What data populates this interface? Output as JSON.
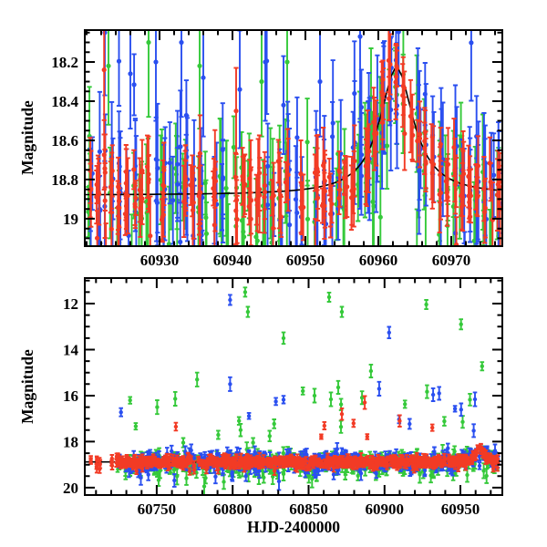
{
  "figure": {
    "ylabel_top": "Magnitude",
    "ylabel_bottom": "Magnitude",
    "xlabel_bottom": "HJD-2400000",
    "background": "#ffffff",
    "frame_color": "#000000"
  },
  "chart_data": [
    {
      "id": "top-panel",
      "type": "scatter",
      "title": "",
      "xlabel": "",
      "ylabel": "Magnitude",
      "y_inverted": true,
      "xlim": [
        60919.75,
        60977.0
      ],
      "ylim": [
        18.037,
        19.14
      ],
      "x_major_ticks": [
        60930,
        60940,
        60950,
        60960,
        60970
      ],
      "x_tick_labels": [
        "60930",
        "60940",
        "60950",
        "60960",
        "60970"
      ],
      "x_minor_step": 2,
      "y_major_ticks": [
        18.2,
        18.4,
        18.6,
        18.8,
        19.0
      ],
      "y_tick_labels": [
        "18.2",
        "18.4",
        "18.6",
        "18.8",
        "19"
      ],
      "y_minor_step": 0.05,
      "grid": false,
      "model_curve": {
        "color": "#000000",
        "baseline_mag": 18.88,
        "peak_mag": 18.23,
        "peak_time": 60962.5,
        "width_days": 2.8,
        "shape": "lorentzian"
      },
      "series": [
        {
          "name": "green",
          "color": "#35c93a",
          "band": {
            "t_start": 60920,
            "t_end": 60976,
            "skip": 0.22,
            "n_per_night": [
              2,
              4
            ],
            "base_offset": 0.06,
            "mag_sigma": 0.12,
            "err_range": [
              0.12,
              0.3
            ],
            "p_bright": 0.03,
            "bright_amp": 0.45,
            "p_faint": 0.08,
            "faint_amp": 0.3,
            "phase": -0.14,
            "seed": 11,
            "follows_model": true
          },
          "outliers": [
            [
              60923,
              18.22,
              0.3
            ],
            [
              60928.5,
              18.1,
              0.38
            ],
            [
              60935.5,
              18.22,
              0.32
            ],
            [
              60944,
              18.3,
              0.28
            ],
            [
              60947.5,
              18.2,
              0.3
            ],
            [
              60959,
              18.38,
              0.25
            ]
          ]
        },
        {
          "name": "blue",
          "color": "#2a4ff0",
          "band": {
            "t_start": 60920,
            "t_end": 60976,
            "skip": 0.2,
            "n_per_night": [
              2,
              5
            ],
            "base_offset": -0.02,
            "mag_sigma": 0.15,
            "err_range": [
              0.15,
              0.33
            ],
            "p_bright": 0.05,
            "bright_amp": 0.5,
            "p_faint": 0.08,
            "faint_amp": 0.3,
            "phase": 0.14,
            "seed": 22,
            "follows_model": true
          },
          "outliers": [
            [
              60922.5,
              18.05,
              0.32
            ],
            [
              60926,
              18.26,
              0.28
            ],
            [
              60929.5,
              18.2,
              0.3
            ],
            [
              60933,
              18.1,
              0.38
            ],
            [
              60936,
              18.28,
              0.3
            ],
            [
              60941,
              18.34,
              0.3
            ],
            [
              60944.5,
              18.2,
              0.3
            ],
            [
              60947,
              18.42,
              0.25
            ],
            [
              60952,
              18.3,
              0.28
            ],
            [
              60957.5,
              18.07,
              0.42
            ]
          ]
        },
        {
          "name": "red",
          "color": "#f23b25",
          "band": {
            "t_start": 60920,
            "t_end": 60976,
            "skip": 0.1,
            "n_per_night": [
              3,
              6
            ],
            "base_offset": 0.0,
            "mag_sigma": 0.085,
            "err_range": [
              0.08,
              0.2
            ],
            "p_bright": 0.004,
            "bright_amp": 0.3,
            "p_faint": 0.05,
            "faint_amp": 0.25,
            "phase": 0,
            "seed": 33,
            "follows_model": true
          },
          "outliers": [
            [
              60922.4,
              18.24,
              0.33
            ],
            [
              60940.5,
              18.45,
              0.22
            ]
          ]
        }
      ]
    },
    {
      "id": "bottom-panel",
      "type": "scatter",
      "title": "",
      "xlabel": "HJD-2400000",
      "ylabel": "Magnitude",
      "y_inverted": true,
      "xlim": [
        60702.6,
        60977.6
      ],
      "ylim": [
        10.89,
        20.32
      ],
      "x_major_ticks": [
        60750,
        60800,
        60850,
        60900,
        60950
      ],
      "x_tick_labels": [
        "60750",
        "60800",
        "60850",
        "60900",
        "60950"
      ],
      "x_minor_step": 10,
      "y_major_ticks": [
        12,
        14,
        16,
        18,
        20
      ],
      "y_tick_labels": [
        "12",
        "14",
        "16",
        "18",
        "20"
      ],
      "y_minor_step": 0.5,
      "grid": false,
      "model_curve": {
        "color": "#000000",
        "baseline_mag": 18.88,
        "peak_mag": 18.23,
        "peak_time": 60962.5,
        "width_days": 2.8,
        "shape": "lorentzian"
      },
      "series": [
        {
          "name": "green",
          "color": "#35c93a",
          "band": {
            "t_start": 60722,
            "t_end": 60974,
            "skip": 0.3,
            "n_per_night": [
              1,
              3
            ],
            "base_offset": 0.08,
            "mag_sigma": 0.22,
            "err_range": [
              0.14,
              0.32
            ],
            "p_bright": 0.035,
            "bright_amp": 2.8,
            "p_faint": 0.07,
            "faint_amp": 0.6,
            "phase": -0.14,
            "seed": 44,
            "follows_model": true
          },
          "outliers": [
            [
              60808.2,
              11.5,
              0.2
            ],
            [
              60810,
              12.36,
              0.22
            ],
            [
              60776.6,
              15.3,
              0.3
            ],
            [
              60833.5,
              13.5,
              0.25
            ],
            [
              60863.5,
              11.72,
              0.2
            ],
            [
              60871.9,
              12.36,
              0.22
            ],
            [
              60853.9,
              16.0,
              0.3
            ],
            [
              60864.7,
              16.16,
              0.3
            ],
            [
              60869.5,
              15.64,
              0.28
            ],
            [
              60891.1,
              14.93,
              0.28
            ],
            [
              60927.5,
              12.04,
              0.2
            ],
            [
              60950.4,
              12.9,
              0.22
            ],
            [
              60750.3,
              16.5,
              0.3
            ],
            [
              60928,
              15.83,
              0.28
            ]
          ]
        },
        {
          "name": "blue",
          "color": "#2a4ff0",
          "band": {
            "t_start": 60725,
            "t_end": 60974,
            "skip": 0.3,
            "n_per_night": [
              1,
              3
            ],
            "base_offset": -0.03,
            "mag_sigma": 0.2,
            "err_range": [
              0.12,
              0.3
            ],
            "p_bright": 0.02,
            "bright_amp": 2.2,
            "p_faint": 0.06,
            "faint_amp": 0.5,
            "phase": 0.14,
            "seed": 55,
            "follows_model": true
          },
          "outliers": [
            [
              60798.3,
              11.84,
              0.22
            ],
            [
              60798.3,
              15.5,
              0.3
            ],
            [
              60903,
              13.26,
              0.25
            ],
            [
              60896.5,
              15.7,
              0.3
            ],
            [
              60932,
              15.96,
              0.28
            ],
            [
              60936,
              15.9,
              0.28
            ],
            [
              60959.6,
              16.16,
              0.3
            ]
          ]
        },
        {
          "name": "red",
          "color": "#f23b25",
          "band": {
            "t_start": 60705,
            "t_end": 60974,
            "skip": 0.12,
            "skip_early": [
              60717,
              0.5,
              60722,
              0.85
            ],
            "n_per_night": [
              2,
              4
            ],
            "base_offset": 0.0,
            "mag_sigma": 0.1,
            "err_range": [
              0.09,
              0.18
            ],
            "p_bright": 0.006,
            "bright_amp": 1.6,
            "p_faint": 0.04,
            "faint_amp": 0.3,
            "phase": 0,
            "seed": 66,
            "follows_model": true
          },
          "outliers": [
            [
              60871.9,
              16.8,
              0.25
            ],
            [
              60887,
              16.3,
              0.28
            ],
            [
              60910,
              17.1,
              0.25
            ]
          ]
        }
      ]
    }
  ]
}
